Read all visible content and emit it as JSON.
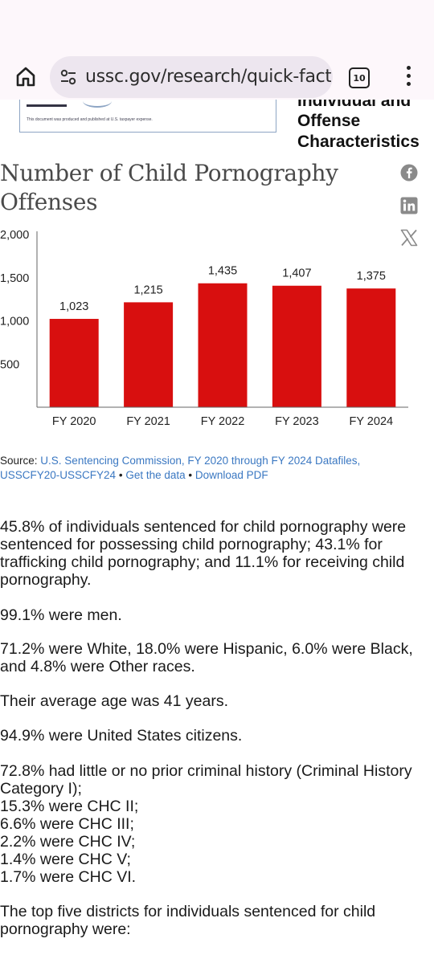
{
  "browser": {
    "url": "ussc.gov/research/quick-facts/",
    "tab_count": "10"
  },
  "doc_thumbnail": {
    "footer_note": "This document was produced and published at U.S. taxpayer expense."
  },
  "side_heading": {
    "lines": [
      "Individual and",
      "Offense",
      "Characteristics"
    ]
  },
  "page": {
    "title_line1": "Number of Child Pornography",
    "title_line2": "Offenses"
  },
  "share_icons": [
    "facebook-icon",
    "linkedin-icon",
    "x-icon"
  ],
  "chart_data": {
    "type": "bar",
    "title": "Number of Child Pornography Offenses",
    "categories": [
      "FY 2020",
      "FY 2021",
      "FY 2022",
      "FY 2023",
      "FY 2024"
    ],
    "values": [
      1023,
      1215,
      1435,
      1407,
      1375
    ],
    "value_labels": [
      "1,023",
      "1,215",
      "1,435",
      "1,407",
      "1,375"
    ],
    "ylim": [
      0,
      2000
    ],
    "y_ticks": [
      500,
      1000,
      1500,
      2000
    ],
    "y_tick_labels": [
      "500",
      "1,000",
      "1,500",
      "2,000"
    ],
    "bar_color": "#d80f0f",
    "grid": false,
    "xlabel": "",
    "ylabel": ""
  },
  "source": {
    "label": "Source:",
    "link": "U.S. Sentencing Commission, FY 2020 through FY 2024 Datafiles, USSCFY20-USSCFY24",
    "sep": "•",
    "get_data": "Get the data",
    "download": "Download PDF"
  },
  "facts": {
    "p1": "45.8% of individuals sentenced for child pornography were sentenced for possessing child pornography; 43.1% for trafficking child pornography; and 11.1% for receiving child pornography.",
    "p2": "99.1% were men.",
    "p3": "71.2% were White, 18.0% were Hispanic, 6.0% were Black, and 4.8% were Other races.",
    "p4": "Their average age was 41 years.",
    "p5": "94.9% were United States citizens.",
    "p6_lines": [
      "72.8% had little or no prior criminal history (Criminal History Category I);",
      "15.3% were CHC II;",
      "6.6% were CHC III;",
      "2.2% were CHC IV;",
      "1.4% were CHC V;",
      "1.7% were CHC VI."
    ],
    "p7": "The top five districts for individuals sentenced for child pornography were:"
  }
}
